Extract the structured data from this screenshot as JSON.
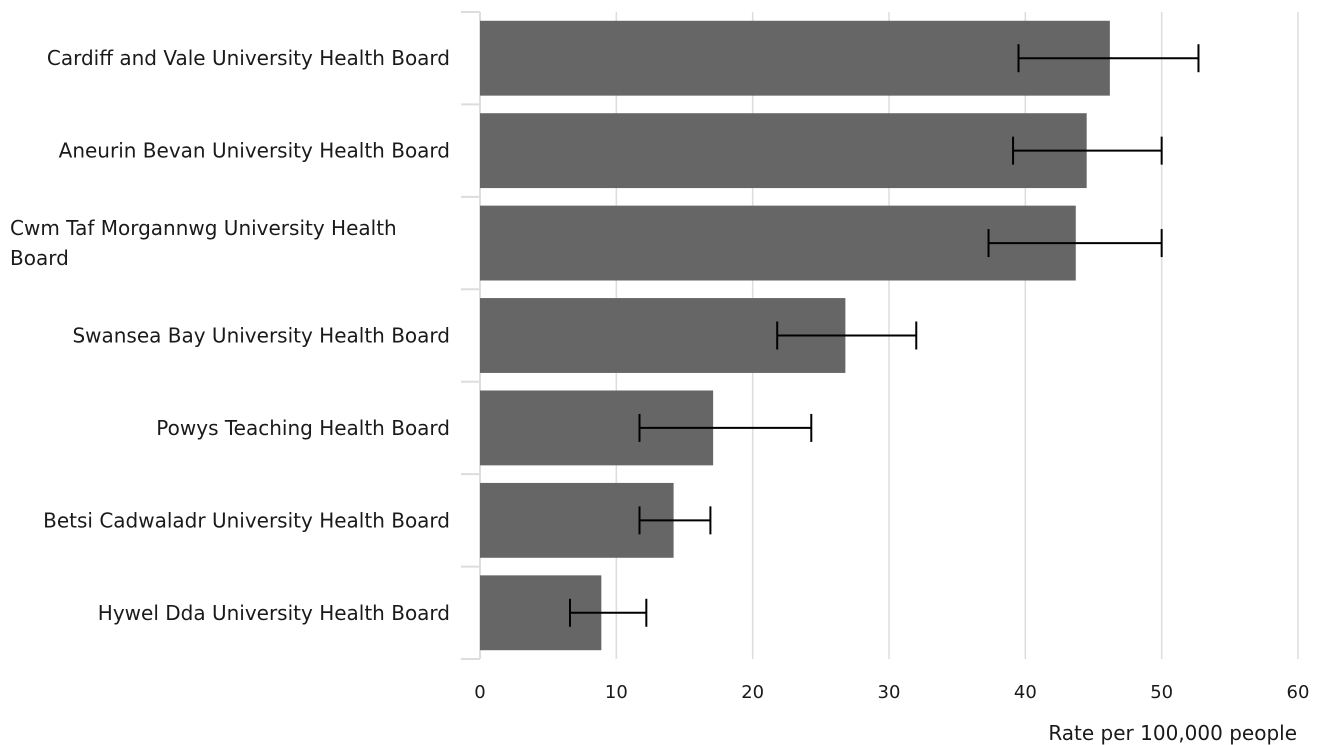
{
  "chart_data": {
    "type": "bar",
    "orientation": "horizontal",
    "categories": [
      "Cardiff and Vale University Health Board",
      "Aneurin Bevan University Health Board",
      "Cwm Taf Morgannwg University Health Board",
      "Swansea Bay University Health Board",
      "Powys Teaching Health Board",
      "Betsi Cadwaladr University Health Board",
      "Hywel Dda University Health Board"
    ],
    "values": [
      46.2,
      44.5,
      43.7,
      26.8,
      17.1,
      14.2,
      8.9
    ],
    "error_low": [
      39.5,
      39.1,
      37.3,
      21.8,
      11.7,
      11.7,
      6.6
    ],
    "error_high": [
      52.7,
      50.0,
      50.0,
      32.0,
      24.3,
      16.9,
      12.2
    ],
    "xlabel": "Rate per 100,000 people",
    "ylabel": "",
    "title": "",
    "xlim": [
      0,
      60
    ],
    "x_ticks": [
      0,
      10,
      20,
      30,
      40,
      50,
      60
    ],
    "grid": "vertical",
    "bar_color": "#666666",
    "error_bar_color": "#000000",
    "grid_color": "#dddddd"
  }
}
